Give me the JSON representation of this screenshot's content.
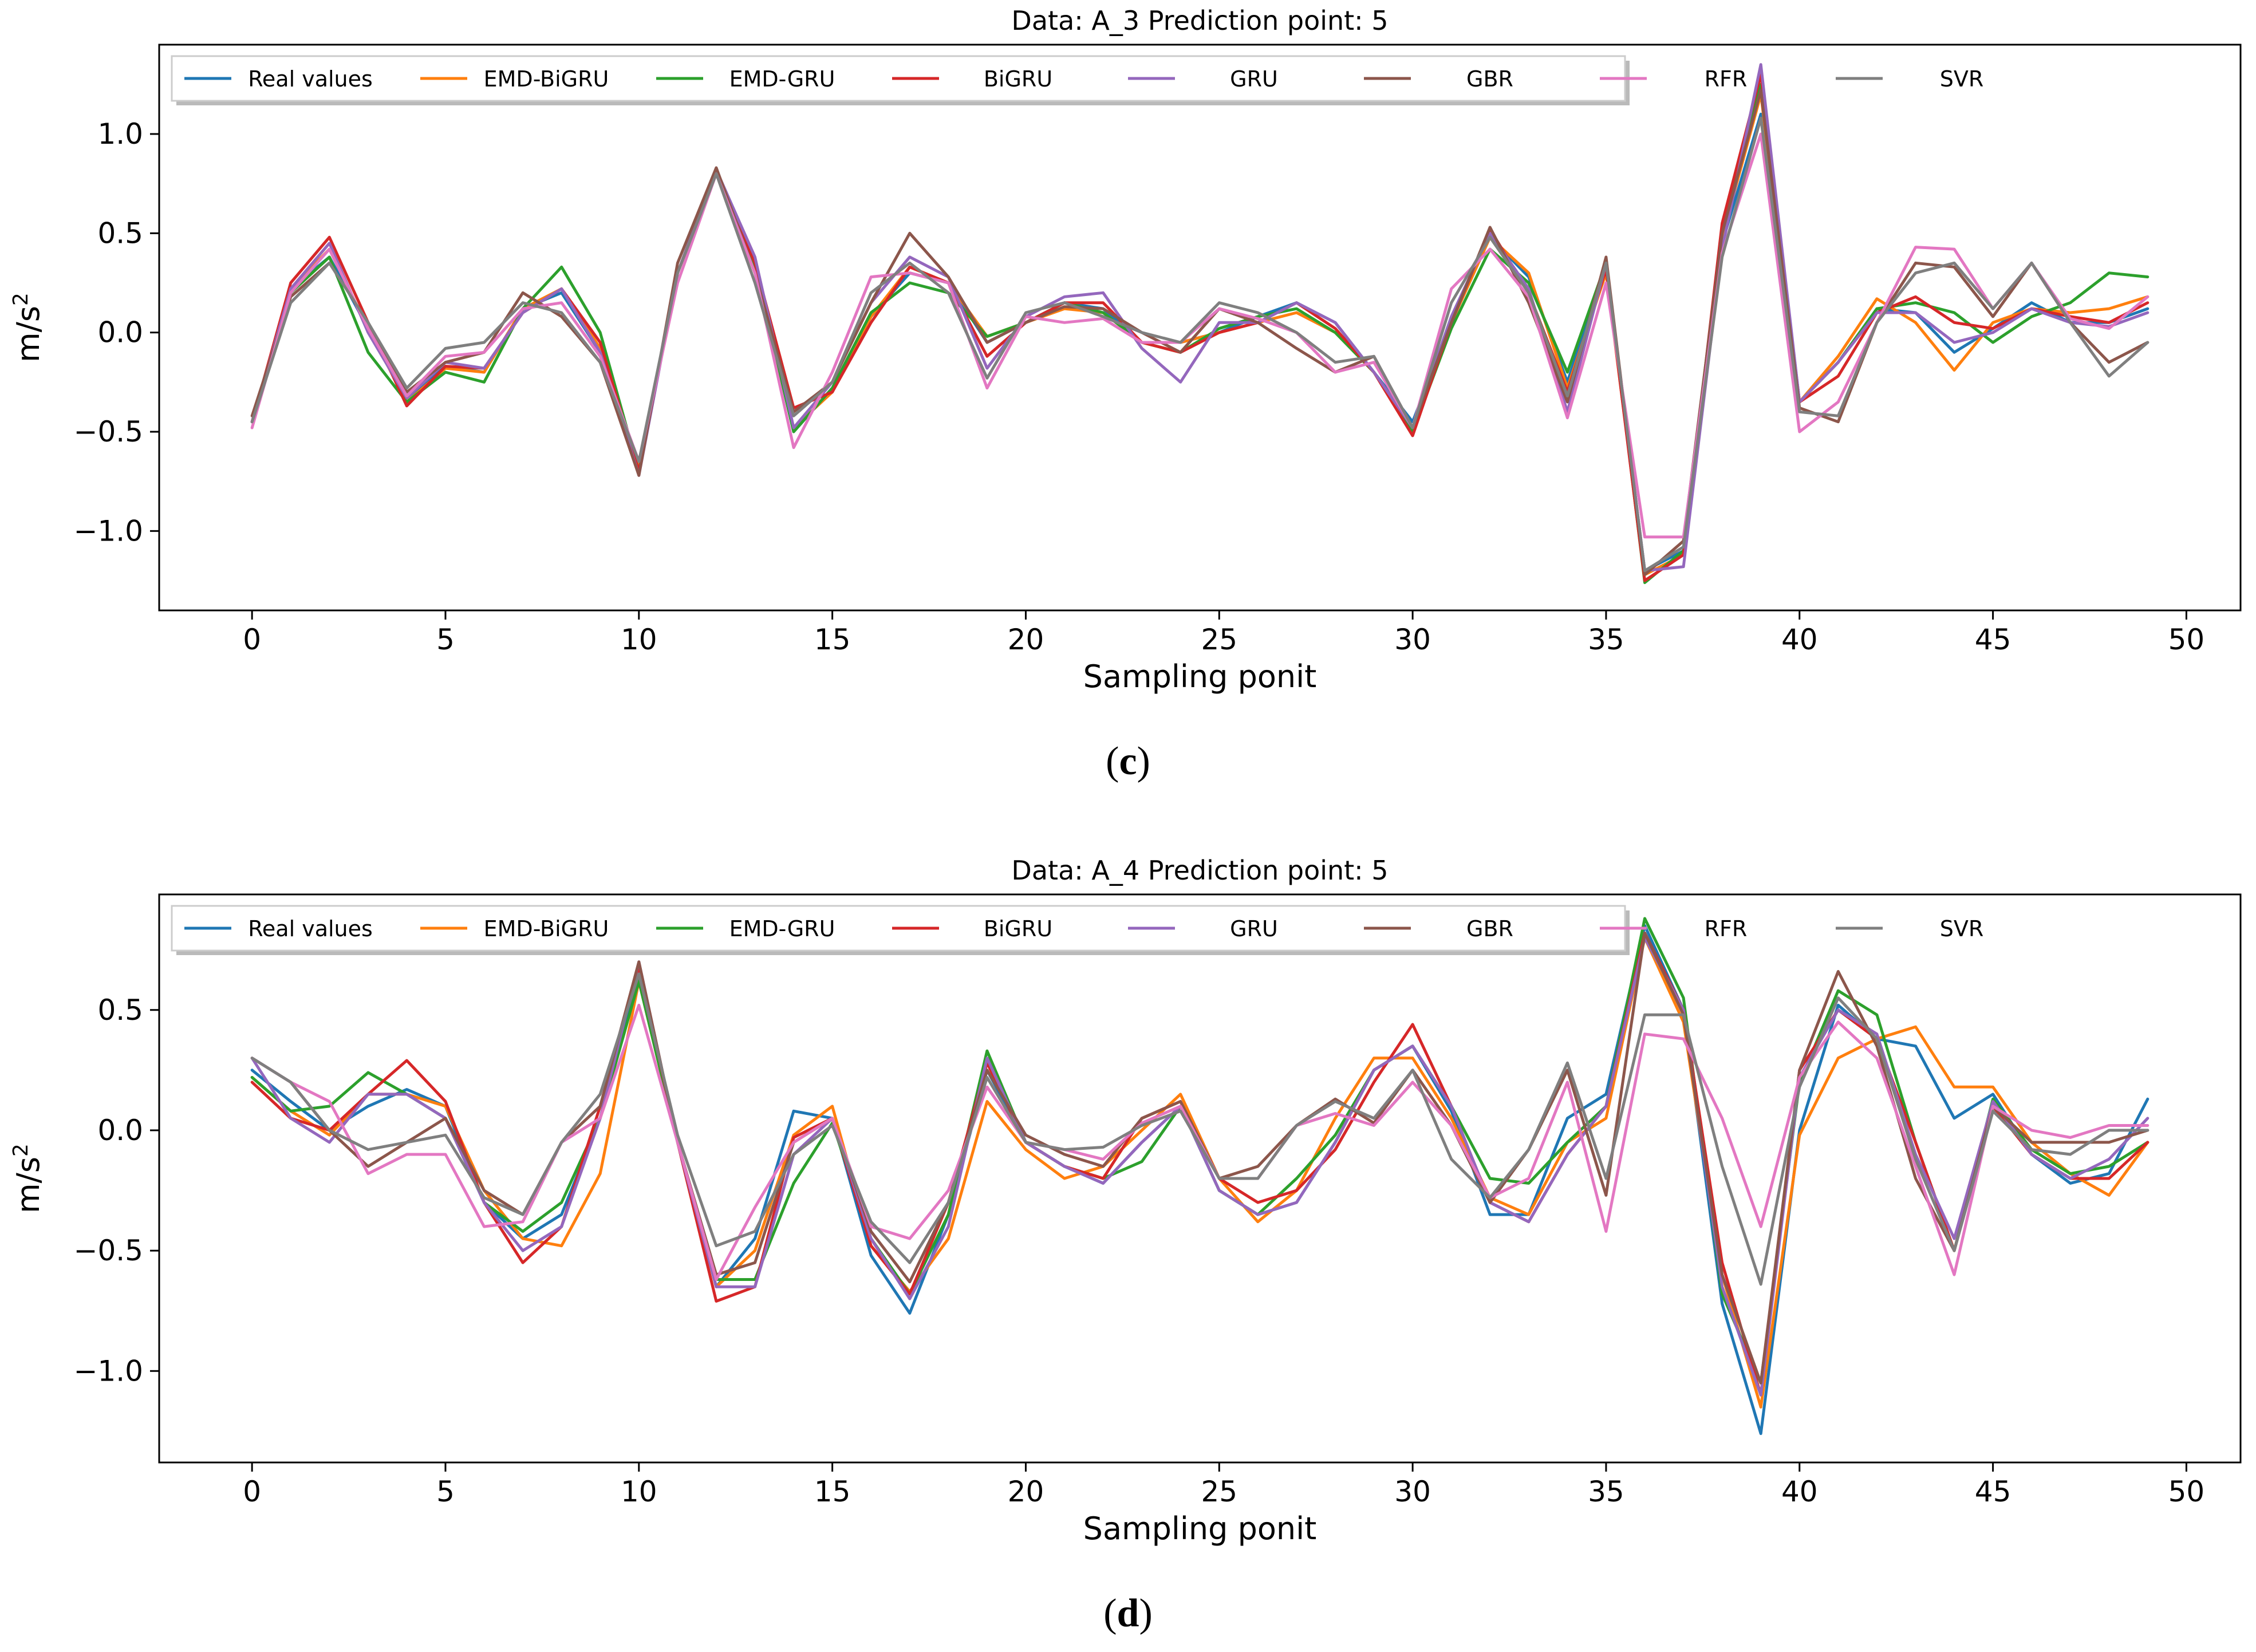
{
  "figure": {
    "captions": [
      {
        "open": "(",
        "letter": "c",
        "close": ")"
      },
      {
        "open": "(",
        "letter": "d",
        "close": ")"
      }
    ]
  },
  "series_colors": {
    "Real values": "#1f77b4",
    "EMD-BiGRU": "#ff7f0e",
    "EMD-GRU": "#2ca02c",
    "BiGRU": "#d62728",
    "GRU": "#9467bd",
    "GBR": "#8c564b",
    "RFR": "#e377c2",
    "SVR": "#7f7f7f"
  },
  "chart_data": [
    {
      "type": "line",
      "title": "Data: A_3 Prediction point: 5",
      "xlabel": "Sampling ponit",
      "ylabel_base": "m/s",
      "ylabel_sup": "2",
      "xlim": [
        -2.4,
        51.4
      ],
      "ylim": [
        -1.4,
        1.45
      ],
      "xticks": [
        0,
        5,
        10,
        15,
        20,
        25,
        30,
        35,
        40,
        45,
        50
      ],
      "yticks": [
        -1.0,
        -0.5,
        0.0,
        0.5,
        1.0
      ],
      "ytick_labels": [
        "−1.0",
        "−0.5",
        "0.0",
        "0.5",
        "1.0"
      ],
      "grid": false,
      "legend_position": "top-left",
      "x": [
        0,
        1,
        2,
        3,
        4,
        5,
        6,
        7,
        8,
        9,
        10,
        11,
        12,
        13,
        14,
        15,
        16,
        17,
        18,
        19,
        20,
        21,
        22,
        23,
        24,
        25,
        26,
        27,
        28,
        29,
        30,
        31,
        32,
        33,
        34,
        35,
        36,
        37,
        38,
        39,
        40,
        41,
        42,
        43,
        44,
        45,
        46,
        47,
        48,
        49
      ],
      "series": [
        {
          "name": "Real values",
          "values": [
            -0.45,
            0.22,
            0.38,
            0.02,
            -0.33,
            -0.17,
            -0.2,
            0.12,
            0.2,
            -0.1,
            -0.7,
            0.3,
            0.82,
            0.35,
            -0.5,
            -0.28,
            0.08,
            0.3,
            0.25,
            -0.05,
            0.05,
            0.15,
            0.12,
            -0.05,
            -0.05,
            0.0,
            0.08,
            0.15,
            0.05,
            -0.2,
            -0.45,
            0.05,
            0.48,
            0.28,
            -0.25,
            0.35,
            -1.2,
            -1.1,
            0.45,
            1.1,
            -0.35,
            -0.15,
            0.12,
            0.1,
            -0.1,
            0.02,
            0.15,
            0.05,
            0.05,
            0.12
          ]
        },
        {
          "name": "EMD-BiGRU",
          "values": [
            -0.45,
            0.22,
            0.42,
            0.02,
            -0.35,
            -0.18,
            -0.2,
            0.12,
            0.22,
            -0.08,
            -0.68,
            0.3,
            0.8,
            0.3,
            -0.48,
            -0.3,
            0.08,
            0.33,
            0.25,
            -0.02,
            0.05,
            0.12,
            0.1,
            -0.05,
            -0.05,
            0.0,
            0.05,
            0.1,
            0.0,
            -0.2,
            -0.48,
            0.05,
            0.48,
            0.3,
            -0.28,
            0.3,
            -1.22,
            -1.12,
            0.48,
            1.2,
            -0.35,
            -0.12,
            0.17,
            0.05,
            -0.19,
            0.05,
            0.12,
            0.1,
            0.12,
            0.18
          ]
        },
        {
          "name": "EMD-GRU",
          "values": [
            -0.45,
            0.2,
            0.38,
            -0.1,
            -0.35,
            -0.2,
            -0.25,
            0.12,
            0.33,
            0.0,
            -0.7,
            0.3,
            0.82,
            0.33,
            -0.5,
            -0.28,
            0.1,
            0.25,
            0.2,
            -0.02,
            0.05,
            0.15,
            0.1,
            -0.05,
            -0.1,
            0.02,
            0.08,
            0.12,
            0.0,
            -0.2,
            -0.5,
            0.02,
            0.42,
            0.25,
            -0.2,
            0.35,
            -1.26,
            -1.1,
            0.5,
            1.25,
            -0.35,
            -0.15,
            0.12,
            0.15,
            0.1,
            -0.05,
            0.08,
            0.15,
            0.3,
            0.28
          ]
        },
        {
          "name": "BiGRU",
          "values": [
            -0.45,
            0.25,
            0.48,
            0.05,
            -0.37,
            -0.17,
            -0.18,
            0.1,
            0.22,
            -0.05,
            -0.7,
            0.3,
            0.82,
            0.35,
            -0.38,
            -0.3,
            0.05,
            0.33,
            0.25,
            -0.12,
            0.05,
            0.15,
            0.15,
            -0.05,
            -0.1,
            0.0,
            0.05,
            0.15,
            0.02,
            -0.2,
            -0.52,
            0.05,
            0.52,
            0.2,
            -0.3,
            0.32,
            -1.25,
            -1.12,
            0.55,
            1.3,
            -0.35,
            -0.22,
            0.1,
            0.18,
            0.05,
            0.02,
            0.12,
            0.08,
            0.05,
            0.15
          ]
        },
        {
          "name": "GRU",
          "values": [
            -0.45,
            0.22,
            0.45,
            0.0,
            -0.33,
            -0.15,
            -0.18,
            0.1,
            0.22,
            -0.1,
            -0.72,
            0.3,
            0.82,
            0.38,
            -0.48,
            -0.25,
            0.15,
            0.38,
            0.28,
            -0.18,
            0.08,
            0.18,
            0.2,
            -0.08,
            -0.25,
            0.05,
            0.05,
            0.15,
            0.05,
            -0.2,
            -0.48,
            0.08,
            0.5,
            0.22,
            -0.4,
            0.35,
            -1.2,
            -1.18,
            0.42,
            1.35,
            -0.35,
            -0.15,
            0.1,
            0.1,
            -0.05,
            0.0,
            0.12,
            0.05,
            0.03,
            0.1
          ]
        },
        {
          "name": "GBR",
          "values": [
            -0.42,
            0.18,
            0.35,
            0.05,
            -0.3,
            -0.15,
            -0.1,
            0.2,
            0.08,
            -0.15,
            -0.72,
            0.35,
            0.83,
            0.3,
            -0.4,
            -0.25,
            0.15,
            0.5,
            0.28,
            -0.05,
            0.05,
            0.13,
            0.12,
            0.0,
            -0.1,
            0.12,
            0.05,
            -0.08,
            -0.2,
            -0.12,
            -0.48,
            0.05,
            0.53,
            0.15,
            -0.35,
            0.38,
            -1.22,
            -1.05,
            0.5,
            1.22,
            -0.38,
            -0.45,
            0.05,
            0.35,
            0.33,
            0.08,
            0.35,
            0.05,
            -0.15,
            -0.05
          ]
        },
        {
          "name": "RFR",
          "values": [
            -0.48,
            0.2,
            0.42,
            0.02,
            -0.32,
            -0.12,
            -0.1,
            0.12,
            0.15,
            -0.12,
            -0.65,
            0.25,
            0.8,
            0.3,
            -0.58,
            -0.2,
            0.28,
            0.3,
            0.25,
            -0.28,
            0.08,
            0.05,
            0.07,
            -0.05,
            -0.05,
            0.12,
            0.07,
            0.0,
            -0.2,
            -0.15,
            -0.48,
            0.22,
            0.42,
            0.18,
            -0.43,
            0.25,
            -1.03,
            -1.03,
            0.4,
            1.0,
            -0.5,
            -0.35,
            0.05,
            0.43,
            0.42,
            0.12,
            0.35,
            0.07,
            0.02,
            0.18
          ]
        },
        {
          "name": "SVR",
          "values": [
            -0.45,
            0.15,
            0.35,
            0.05,
            -0.28,
            -0.08,
            -0.05,
            0.15,
            0.1,
            -0.15,
            -0.65,
            0.3,
            0.8,
            0.25,
            -0.42,
            -0.25,
            0.2,
            0.35,
            0.2,
            -0.23,
            0.1,
            0.15,
            0.08,
            0.0,
            -0.05,
            0.15,
            0.1,
            0.0,
            -0.15,
            -0.12,
            -0.48,
            0.15,
            0.48,
            0.2,
            -0.32,
            0.35,
            -1.2,
            -1.08,
            0.38,
            1.08,
            -0.4,
            -0.42,
            0.05,
            0.3,
            0.35,
            0.12,
            0.35,
            0.05,
            -0.22,
            -0.05
          ]
        }
      ]
    },
    {
      "type": "line",
      "title": "Data: A_4 Prediction point: 5",
      "xlabel": "Sampling ponit",
      "ylabel_base": "m/s",
      "ylabel_sup": "2",
      "xlim": [
        -2.4,
        51.4
      ],
      "ylim": [
        -1.38,
        0.98
      ],
      "xticks": [
        0,
        5,
        10,
        15,
        20,
        25,
        30,
        35,
        40,
        45,
        50
      ],
      "yticks": [
        -1.0,
        -0.5,
        0.0,
        0.5
      ],
      "ytick_labels": [
        "−1.0",
        "−0.5",
        "0.0",
        "0.5"
      ],
      "grid": false,
      "legend_position": "top-left",
      "x": [
        0,
        1,
        2,
        3,
        4,
        5,
        6,
        7,
        8,
        9,
        10,
        11,
        12,
        13,
        14,
        15,
        16,
        17,
        18,
        19,
        20,
        21,
        22,
        23,
        24,
        25,
        26,
        27,
        28,
        29,
        30,
        31,
        32,
        33,
        34,
        35,
        36,
        37,
        38,
        39,
        40,
        41,
        42,
        43,
        44,
        45,
        46,
        47,
        48,
        49
      ],
      "series": [
        {
          "name": "Real values",
          "values": [
            0.25,
            0.12,
            0.0,
            0.1,
            0.17,
            0.1,
            -0.3,
            -0.45,
            -0.35,
            0.05,
            0.65,
            -0.05,
            -0.65,
            -0.45,
            0.08,
            0.05,
            -0.52,
            -0.76,
            -0.35,
            0.25,
            -0.05,
            -0.15,
            -0.22,
            -0.05,
            0.1,
            -0.25,
            -0.35,
            -0.3,
            -0.05,
            0.25,
            0.35,
            0.08,
            -0.35,
            -0.35,
            0.05,
            0.15,
            0.85,
            0.5,
            -0.72,
            -1.26,
            0.0,
            0.52,
            0.38,
            0.35,
            0.05,
            0.15,
            -0.1,
            -0.22,
            -0.18,
            0.13
          ]
        },
        {
          "name": "EMD-BiGRU",
          "values": [
            0.22,
            0.08,
            -0.02,
            0.15,
            0.15,
            0.1,
            -0.25,
            -0.45,
            -0.48,
            -0.18,
            0.62,
            -0.05,
            -0.65,
            -0.5,
            -0.02,
            0.1,
            -0.48,
            -0.67,
            -0.45,
            0.12,
            -0.08,
            -0.2,
            -0.15,
            0.0,
            0.15,
            -0.2,
            -0.38,
            -0.25,
            0.05,
            0.3,
            0.3,
            0.05,
            -0.28,
            -0.35,
            -0.05,
            0.05,
            0.8,
            0.45,
            -0.6,
            -1.15,
            -0.02,
            0.3,
            0.38,
            0.43,
            0.18,
            0.18,
            -0.05,
            -0.18,
            -0.27,
            -0.05
          ]
        },
        {
          "name": "EMD-GRU",
          "values": [
            0.22,
            0.08,
            0.1,
            0.24,
            0.15,
            0.05,
            -0.3,
            -0.42,
            -0.3,
            0.05,
            0.62,
            -0.05,
            -0.62,
            -0.62,
            -0.22,
            0.03,
            -0.45,
            -0.68,
            -0.35,
            0.33,
            -0.05,
            -0.15,
            -0.2,
            -0.13,
            0.1,
            -0.25,
            -0.35,
            -0.2,
            -0.02,
            0.25,
            0.35,
            0.1,
            -0.2,
            -0.22,
            -0.05,
            0.1,
            0.88,
            0.55,
            -0.68,
            -1.05,
            0.2,
            0.58,
            0.48,
            -0.05,
            -0.5,
            0.13,
            -0.08,
            -0.18,
            -0.15,
            -0.05
          ]
        },
        {
          "name": "BiGRU",
          "values": [
            0.2,
            0.05,
            0.0,
            0.15,
            0.29,
            0.12,
            -0.3,
            -0.55,
            -0.4,
            0.1,
            0.68,
            -0.05,
            -0.71,
            -0.65,
            -0.03,
            0.05,
            -0.48,
            -0.68,
            -0.3,
            0.28,
            -0.05,
            -0.15,
            -0.2,
            0.05,
            0.12,
            -0.2,
            -0.3,
            -0.25,
            -0.08,
            0.2,
            0.44,
            0.1,
            -0.3,
            -0.38,
            -0.1,
            0.1,
            0.82,
            0.5,
            -0.55,
            -1.1,
            0.25,
            0.5,
            0.38,
            -0.05,
            -0.5,
            0.1,
            -0.1,
            -0.2,
            -0.2,
            -0.05
          ]
        },
        {
          "name": "GRU",
          "values": [
            0.3,
            0.05,
            -0.05,
            0.15,
            0.15,
            0.05,
            -0.3,
            -0.5,
            -0.4,
            0.05,
            0.7,
            -0.05,
            -0.65,
            -0.65,
            -0.1,
            0.05,
            -0.45,
            -0.7,
            -0.4,
            0.3,
            -0.05,
            -0.15,
            -0.22,
            -0.05,
            0.1,
            -0.25,
            -0.35,
            -0.3,
            -0.05,
            0.25,
            0.35,
            0.1,
            -0.3,
            -0.38,
            -0.1,
            0.1,
            0.8,
            0.5,
            -0.65,
            -1.1,
            0.22,
            0.5,
            0.4,
            -0.1,
            -0.45,
            0.12,
            -0.1,
            -0.2,
            -0.12,
            0.05
          ]
        },
        {
          "name": "GBR",
          "values": [
            0.3,
            0.2,
            0.0,
            -0.15,
            -0.05,
            0.05,
            -0.25,
            -0.35,
            -0.05,
            0.1,
            0.7,
            -0.05,
            -0.6,
            -0.55,
            -0.05,
            0.05,
            -0.42,
            -0.63,
            -0.3,
            0.25,
            -0.02,
            -0.1,
            -0.15,
            0.05,
            0.12,
            -0.2,
            -0.15,
            0.02,
            0.13,
            0.03,
            0.25,
            0.02,
            -0.3,
            -0.08,
            0.25,
            -0.27,
            0.82,
            0.48,
            -0.6,
            -1.05,
            0.25,
            0.66,
            0.35,
            -0.2,
            -0.5,
            0.1,
            -0.05,
            -0.05,
            -0.05,
            0.0
          ]
        },
        {
          "name": "RFR",
          "values": [
            0.3,
            0.2,
            0.12,
            -0.18,
            -0.1,
            -0.1,
            -0.4,
            -0.38,
            -0.05,
            0.05,
            0.52,
            -0.05,
            -0.62,
            -0.32,
            -0.05,
            0.05,
            -0.4,
            -0.45,
            -0.25,
            0.18,
            -0.05,
            -0.08,
            -0.12,
            0.03,
            0.1,
            -0.2,
            -0.2,
            0.02,
            0.07,
            0.02,
            0.2,
            0.02,
            -0.28,
            -0.2,
            0.2,
            -0.42,
            0.4,
            0.38,
            0.05,
            -0.4,
            0.22,
            0.45,
            0.3,
            -0.15,
            -0.6,
            0.1,
            0.0,
            -0.03,
            0.02,
            0.02
          ]
        },
        {
          "name": "SVR",
          "values": [
            0.3,
            0.2,
            0.0,
            -0.08,
            -0.05,
            -0.02,
            -0.28,
            -0.35,
            -0.05,
            0.15,
            0.65,
            -0.02,
            -0.48,
            -0.42,
            -0.1,
            0.02,
            -0.38,
            -0.55,
            -0.3,
            0.22,
            -0.05,
            -0.08,
            -0.07,
            0.02,
            0.08,
            -0.2,
            -0.2,
            0.02,
            0.12,
            0.05,
            0.25,
            -0.12,
            -0.28,
            -0.08,
            0.28,
            -0.2,
            0.48,
            0.48,
            -0.15,
            -0.64,
            0.18,
            0.55,
            0.38,
            -0.12,
            -0.5,
            0.08,
            -0.08,
            -0.1,
            0.0,
            0.0
          ]
        }
      ]
    }
  ]
}
